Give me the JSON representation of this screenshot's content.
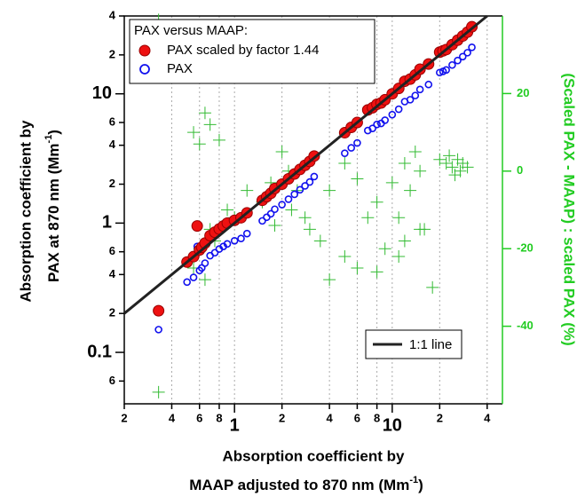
{
  "chart_data": {
    "type": "scatter",
    "xlabel_line1": "Absorption coefficient by",
    "xlabel_line2": "MAAP adjusted to 870 nm (Mm",
    "xlabel_exponent": "-1",
    "xlabel_close": ")",
    "ylabel_line1": "Absorption coefficient by",
    "ylabel_line2": "PAX at 870 nm (Mm",
    "ylabel_exponent": "-1",
    "ylabel_close": ")",
    "y2label": "(Scaled PAX - MAAP) : scaled PAX (%)",
    "legend_title": "PAX versus MAAP:",
    "legend_loc": "upper left",
    "xscale": "log",
    "yscale": "log",
    "xlim": [
      0.2,
      50
    ],
    "ylim": [
      0.04,
      40
    ],
    "y2lim": [
      -60,
      40
    ],
    "xticks": [
      {
        "value": 0.2,
        "label": "2"
      },
      {
        "value": 0.4,
        "label": "4"
      },
      {
        "value": 0.6,
        "label": "6"
      },
      {
        "value": 0.8,
        "label": "8"
      },
      1,
      2,
      4,
      6,
      8,
      10,
      {
        "value": 20,
        "label": "2"
      },
      {
        "value": 40,
        "label": "4"
      }
    ],
    "yticks": [
      {
        "value": 0.06,
        "label": "6"
      },
      0.1,
      {
        "value": 0.2,
        "label": "2"
      },
      {
        "value": 0.4,
        "label": "4"
      },
      {
        "value": 0.6,
        "label": "6"
      },
      1,
      2,
      4,
      6,
      10,
      {
        "value": 20,
        "label": "2"
      },
      {
        "value": 40,
        "label": "4"
      }
    ],
    "y2ticks": [
      -40,
      -20,
      0,
      20
    ],
    "xgrid": true,
    "y2_color": "#22cc22",
    "series": [
      {
        "name": "PAX scaled by factor 1.44",
        "color": "#ee1111",
        "marker": "filled-circle",
        "x": [
          0.33,
          0.5,
          0.55,
          0.58,
          0.6,
          0.62,
          0.65,
          0.7,
          0.75,
          0.8,
          0.85,
          0.9,
          1.0,
          1.1,
          1.2,
          1.5,
          1.6,
          1.7,
          1.8,
          2.0,
          2.2,
          2.4,
          2.6,
          2.8,
          3.0,
          3.2,
          5.0,
          5.5,
          6.0,
          7.0,
          7.5,
          8.0,
          8.5,
          9.0,
          10,
          11,
          12,
          13,
          14,
          15,
          17,
          20,
          21,
          22,
          24,
          26,
          28,
          30,
          32
        ],
        "values": [
          0.21,
          0.5,
          0.55,
          0.95,
          0.62,
          0.65,
          0.7,
          0.8,
          0.85,
          0.9,
          0.95,
          1.0,
          1.05,
          1.1,
          1.2,
          1.5,
          1.6,
          1.7,
          1.85,
          2.0,
          2.2,
          2.4,
          2.6,
          2.8,
          3.0,
          3.3,
          5.0,
          5.5,
          6.0,
          7.5,
          7.8,
          8.3,
          8.5,
          9.0,
          10,
          11,
          12.5,
          13,
          14,
          15.5,
          17,
          21,
          21.5,
          22,
          24,
          26,
          28,
          30,
          33
        ]
      },
      {
        "name": "PAX",
        "color": "#1111ee",
        "marker": "open-circle",
        "x": [
          0.33,
          0.5,
          0.55,
          0.58,
          0.6,
          0.62,
          0.65,
          0.7,
          0.75,
          0.8,
          0.85,
          0.9,
          1.0,
          1.1,
          1.2,
          1.5,
          1.6,
          1.7,
          1.8,
          2.0,
          2.2,
          2.4,
          2.6,
          2.8,
          3.0,
          3.2,
          5.0,
          5.5,
          6.0,
          7.0,
          7.5,
          8.0,
          8.5,
          9.0,
          10,
          11,
          12,
          13,
          14,
          15,
          17,
          20,
          21,
          22,
          24,
          26,
          28,
          30,
          32
        ],
        "values": [
          0.15,
          0.35,
          0.38,
          0.66,
          0.43,
          0.45,
          0.49,
          0.56,
          0.59,
          0.63,
          0.66,
          0.69,
          0.73,
          0.76,
          0.83,
          1.04,
          1.11,
          1.18,
          1.28,
          1.39,
          1.53,
          1.67,
          1.81,
          1.94,
          2.08,
          2.29,
          3.47,
          3.82,
          4.17,
          5.2,
          5.4,
          5.8,
          5.9,
          6.25,
          6.9,
          7.6,
          8.7,
          9.0,
          9.7,
          10.8,
          11.8,
          14.6,
          14.9,
          15.3,
          16.7,
          18.1,
          19.4,
          20.8,
          22.9
        ]
      },
      {
        "color": "#33bb33",
        "marker": "cross",
        "axis": "y2",
        "x": [
          0.33,
          0.33,
          0.55,
          0.6,
          0.65,
          0.7,
          0.8,
          0.55,
          0.6,
          0.65,
          0.7,
          0.75,
          0.9,
          1.0,
          1.2,
          1.5,
          1.7,
          2.0,
          2.2,
          2.5,
          2.8,
          3.0,
          3.5,
          1.8,
          2.3,
          4,
          5,
          6,
          7,
          8,
          9,
          10,
          11,
          12,
          13,
          14,
          15,
          16,
          18,
          12,
          11,
          20,
          22,
          24,
          26,
          28,
          30,
          25,
          23,
          27,
          6,
          5,
          4,
          8,
          15
        ],
        "values": [
          39,
          -57,
          10,
          7,
          15,
          12,
          8,
          -25,
          -20,
          -28,
          -15,
          -18,
          -10,
          -12,
          -5,
          -8,
          -3,
          5,
          0,
          -5,
          -12,
          -15,
          -18,
          -14,
          -10,
          -5,
          2,
          -2,
          -12,
          -8,
          -20,
          -3,
          -22,
          2,
          -5,
          5,
          0,
          -15,
          -30,
          -18,
          -12,
          3,
          2,
          1,
          3,
          2,
          1,
          -1,
          4,
          0,
          -25,
          -22,
          -28,
          -26,
          -15
        ]
      }
    ],
    "reference_line": {
      "name": "1:1 line",
      "color": "#222222",
      "x": [
        0.2,
        40
      ],
      "values": [
        0.2,
        40
      ]
    }
  }
}
